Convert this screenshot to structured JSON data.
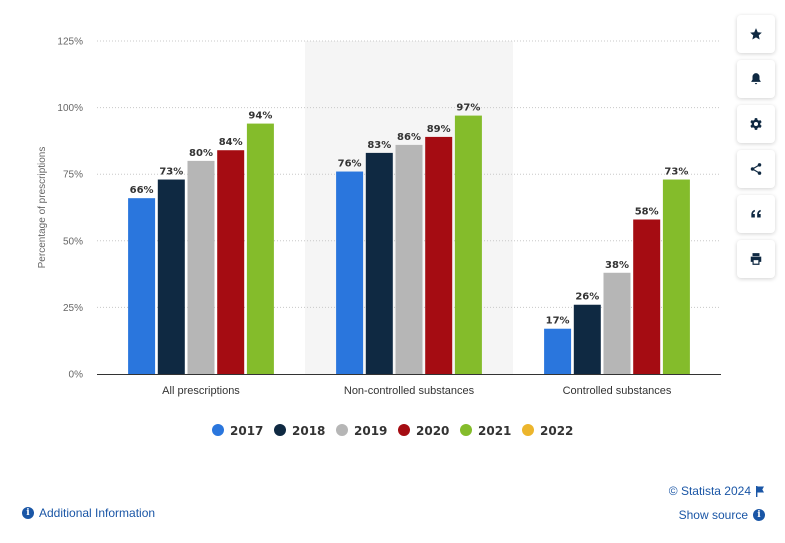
{
  "chart_data": {
    "type": "bar",
    "ylabel": "Percentage of prescriptions",
    "ylim": [
      0,
      125
    ],
    "yticks": [
      "0%",
      "25%",
      "50%",
      "75%",
      "100%",
      "125%"
    ],
    "ytick_values": [
      0,
      25,
      50,
      75,
      100,
      125
    ],
    "categories": [
      "All prescriptions",
      "Non-controlled substances",
      "Controlled substances"
    ],
    "highlighted_category": 1,
    "series": [
      {
        "name": "2017",
        "color": "#2a76dd",
        "values": [
          66,
          76,
          17
        ],
        "labels": [
          "66%",
          "76%",
          "17%"
        ]
      },
      {
        "name": "2018",
        "color": "#0f2942",
        "values": [
          73,
          83,
          26
        ],
        "labels": [
          "73%",
          "83%",
          "26%"
        ]
      },
      {
        "name": "2019",
        "color": "#b6b6b6",
        "values": [
          80,
          86,
          38
        ],
        "labels": [
          "80%",
          "86%",
          "38%"
        ]
      },
      {
        "name": "2020",
        "color": "#a50c12",
        "values": [
          84,
          89,
          58
        ],
        "labels": [
          "84%",
          "89%",
          "58%"
        ]
      },
      {
        "name": "2021",
        "color": "#84bc2b",
        "values": [
          94,
          97,
          73
        ],
        "labels": [
          "94%",
          "97%",
          "73%"
        ]
      },
      {
        "name": "2022",
        "color": "#ecb52c",
        "values": [
          null,
          null,
          null
        ],
        "labels": [
          "",
          "",
          ""
        ]
      }
    ],
    "legend_position": "bottom"
  },
  "toolbar": [
    {
      "name": "favorite",
      "icon": "star-icon"
    },
    {
      "name": "notification",
      "icon": "bell-icon"
    },
    {
      "name": "settings",
      "icon": "gear-icon"
    },
    {
      "name": "share",
      "icon": "share-icon"
    },
    {
      "name": "cite",
      "icon": "quote-icon"
    },
    {
      "name": "print",
      "icon": "print-icon"
    }
  ],
  "footer": {
    "copyright": "© Statista 2024",
    "show_source": "Show source",
    "additional_info": "Additional Information",
    "info_glyph": "i"
  },
  "colors": {
    "accent": "#1a56a6"
  }
}
